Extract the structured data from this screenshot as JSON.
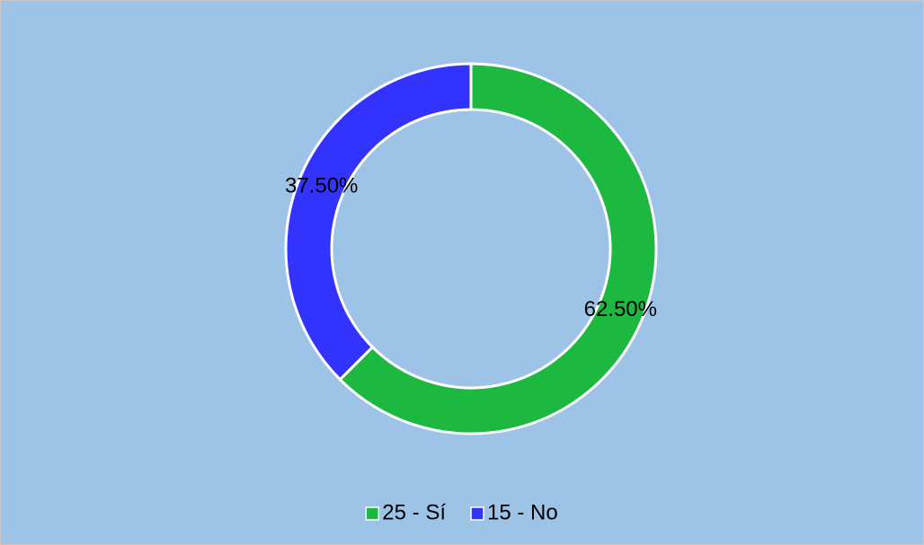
{
  "chart_data": {
    "type": "donut",
    "categories": [
      "25 - Sí",
      "15 - No"
    ],
    "values": [
      62.5,
      37.5
    ],
    "value_labels": [
      "62.50%",
      "37.50%"
    ],
    "colors": [
      "#1db83f",
      "#3333ff"
    ],
    "legend": "bottom"
  }
}
